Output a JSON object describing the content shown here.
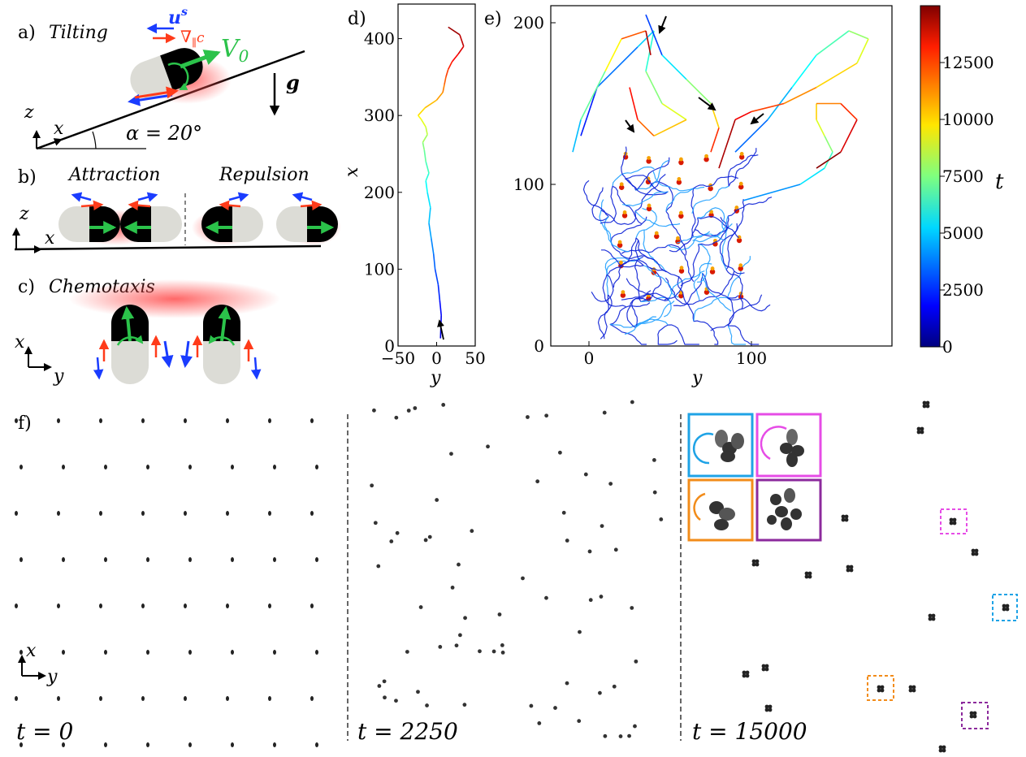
{
  "panels": {
    "a": {
      "label": "a)",
      "title": "Tilting",
      "us": "u",
      "us_sup": "s",
      "grad": "∇",
      "grad_sub": "∥",
      "grad_c": "c",
      "v0": "V",
      "v0_sub": "0",
      "g": "g",
      "z": "z",
      "x": "x",
      "alpha": "α = 20°"
    },
    "b": {
      "label": "b)",
      "attraction": "Attraction",
      "repulsion": "Repulsion",
      "z": "z",
      "x": "x"
    },
    "c": {
      "label": "c)",
      "title": "Chemotaxis",
      "x": "x",
      "y": "y"
    },
    "d": {
      "label": "d)",
      "xlabel": "y",
      "ylabel": "x",
      "xticks": [
        "−50",
        "0",
        "50"
      ],
      "yticks": [
        "0",
        "100",
        "200",
        "300",
        "400"
      ]
    },
    "e": {
      "label": "e)",
      "xlabel": "y",
      "xticks": [
        "0",
        "100"
      ],
      "yticks": [
        "0",
        "100",
        "200"
      ]
    },
    "colorbar": {
      "label": "t",
      "ticks": [
        "0",
        "2500",
        "5000",
        "7500",
        "10000",
        "12500"
      ]
    },
    "f": {
      "label": "f)",
      "x": "x",
      "y": "y",
      "t0": "t = 0",
      "t1": "t = 2250",
      "t2": "t = 15000"
    }
  },
  "chart_data": [
    {
      "type": "line",
      "panel": "d",
      "xlabel": "y",
      "ylabel": "x",
      "xlim": [
        -50,
        50
      ],
      "ylim": [
        0,
        440
      ],
      "series": [
        {
          "x": [
            5,
            6,
            4,
            2,
            -2,
            -4,
            -7,
            -10,
            -8,
            -12,
            -14,
            -10,
            -14,
            -16,
            -18,
            -12,
            -14,
            -20,
            -24,
            -15,
            0,
            8,
            10,
            12,
            15,
            20,
            28,
            35,
            30,
            15
          ],
          "y": [
            10,
            40,
            60,
            80,
            100,
            120,
            140,
            160,
            180,
            200,
            215,
            225,
            240,
            255,
            265,
            275,
            285,
            295,
            300,
            310,
            320,
            330,
            340,
            350,
            360,
            370,
            380,
            390,
            405,
            415
          ]
        }
      ]
    },
    {
      "type": "line",
      "panel": "e",
      "xlabel": "y",
      "xlim": [
        -25,
        185
      ],
      "ylim": [
        0,
        210
      ],
      "colorbar": {
        "label": "t",
        "range": [
          0,
          15000
        ]
      }
    },
    {
      "type": "scatter",
      "panel": "f",
      "times": [
        0,
        2250,
        15000
      ]
    }
  ],
  "colors": {
    "blue": "#1a3cff",
    "red": "#ff3b1a",
    "green": "#2bc24a",
    "glow": "#ff6b6b",
    "inset_cyan": "#1fa3e6",
    "inset_magenta": "#e64ce6",
    "inset_orange": "#f28c1a",
    "inset_purple": "#8c2a9c"
  }
}
